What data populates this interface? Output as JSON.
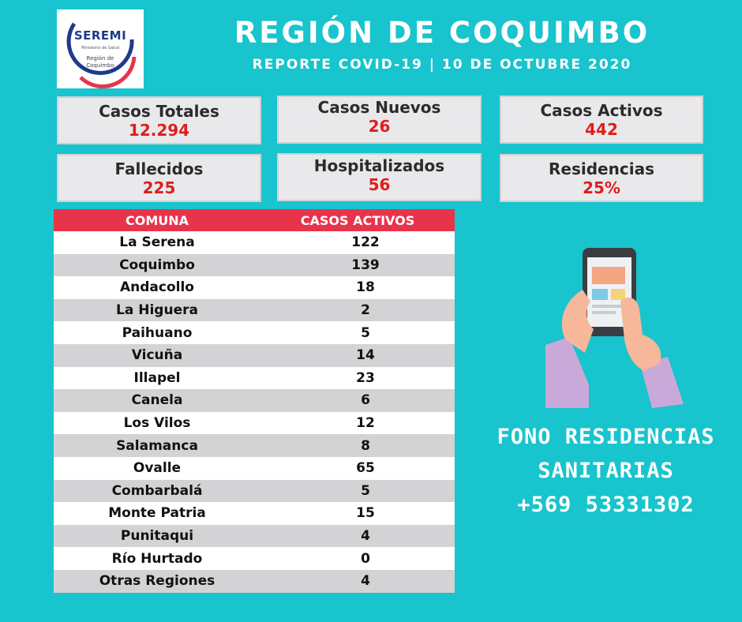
{
  "logo": {
    "name": "SEREMI",
    "ministry": "Ministerio de Salud",
    "region_line1": "Región de",
    "region_line2": "Coquimbo"
  },
  "header": {
    "title": "REGIÓN DE COQUIMBO",
    "subtitle": "REPORTE COVID-19 | 10 DE OCTUBRE 2020"
  },
  "stats": {
    "casos_totales": {
      "label": "Casos Totales",
      "value": "12.294"
    },
    "casos_nuevos": {
      "label": "Casos Nuevos",
      "value": "26"
    },
    "casos_activos": {
      "label": "Casos Activos",
      "value": "442"
    },
    "fallecidos": {
      "label": "Fallecidos",
      "value": "225"
    },
    "hospitalizados": {
      "label": "Hospitalizados",
      "value": "56"
    },
    "residencias": {
      "label": "Residencias",
      "value": "25%"
    }
  },
  "table": {
    "headers": [
      "COMUNA",
      "CASOS ACTIVOS"
    ],
    "rows": [
      [
        "La Serena",
        "122"
      ],
      [
        "Coquimbo",
        "139"
      ],
      [
        "Andacollo",
        "18"
      ],
      [
        "La Higuera",
        "2"
      ],
      [
        "Paihuano",
        "5"
      ],
      [
        "Vicuña",
        "14"
      ],
      [
        "Illapel",
        "23"
      ],
      [
        "Canela",
        "6"
      ],
      [
        "Los Vilos",
        "12"
      ],
      [
        "Salamanca",
        "8"
      ],
      [
        "Ovalle",
        "65"
      ],
      [
        "Combarbalá",
        "5"
      ],
      [
        "Monte Patria",
        "15"
      ],
      [
        "Punitaqui",
        "4"
      ],
      [
        "Río Hurtado",
        "0"
      ],
      [
        "Otras Regiones",
        "4"
      ]
    ]
  },
  "fono": {
    "line1": "FONO RESIDENCIAS",
    "line2": "SANITARIAS",
    "line3": "+569 53331302"
  },
  "colors": {
    "background": "#18c4cd",
    "accent": "#e8344b",
    "value_red": "#e11d1d"
  }
}
